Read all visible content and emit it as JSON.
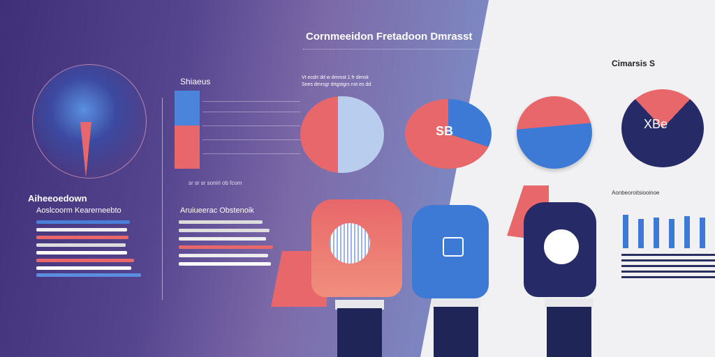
{
  "header": {
    "title": "Cornmeeidon Fretadoon Dmrasst",
    "sub1": "Vt ecdrt dd w dmrsst 1 fr dimsk",
    "sub2": "Sees dmrsgr drtgstgrs nst es dd"
  },
  "left": {
    "section1": "Aiheeoedown",
    "section1_sub": "Aoslcoorm Kearerneebto",
    "legend": "Shiaeus",
    "section2_sub": "Aruiueerac Obstenoik",
    "axis_text": "sr sr sr soniri ob fcom"
  },
  "right": {
    "title": "Cimarsis S",
    "pie1_label": "SB",
    "pie3_label": "XBe",
    "panel_title": "Aonbeoroitsiooinoe"
  },
  "colors": {
    "blue": "#3d7ad6",
    "coral": "#e8676a",
    "navy": "#262a66",
    "purple": "#4b3b86"
  }
}
